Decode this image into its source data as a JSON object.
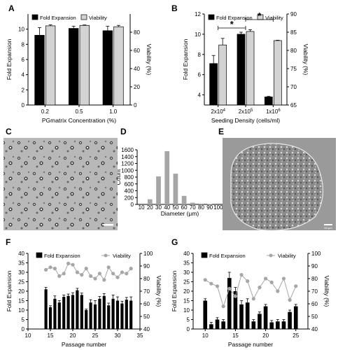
{
  "panels": {
    "A": "A",
    "B": "B",
    "C": "C",
    "D": "D",
    "E": "E",
    "F": "F",
    "G": "G"
  },
  "colors": {
    "fold": "#000000",
    "viability_bar": "#d3d3d3",
    "viability_line": "#a6a6a6",
    "hist": "#a6a6a6"
  },
  "micrograph_scalebars": {
    "E": "60 μm"
  },
  "chart_data": [
    {
      "id": "A",
      "type": "bar",
      "categories": [
        "0.2",
        "0.5",
        "1.0"
      ],
      "xlabel": "PGmatrix Concentration (%)",
      "ylabel": "Fold Expansion",
      "y2label": "Viability (%)",
      "ylim": [
        0,
        12
      ],
      "yticks": [
        0,
        2,
        4,
        6,
        8,
        10
      ],
      "y2lim": [
        0,
        100
      ],
      "y2ticks": [
        0,
        20,
        40,
        60,
        80
      ],
      "legend_position": "top-left",
      "series": [
        {
          "name": "Fold Expansion",
          "axis": "left",
          "values": [
            9.2,
            10.1,
            9.8
          ],
          "errors": [
            1.0,
            0.3,
            0.6
          ]
        },
        {
          "name": "Viability",
          "axis": "right",
          "values": [
            87,
            87.5,
            86
          ],
          "errors": [
            1.0,
            0.5,
            1.5
          ]
        }
      ]
    },
    {
      "id": "B",
      "type": "bar",
      "categories": [
        "2x10^4",
        "2x10^5",
        "1x10^6"
      ],
      "category_labels": [
        {
          "base": "2x10",
          "exp": "4"
        },
        {
          "base": "2x10",
          "exp": "5"
        },
        {
          "base": "1x10",
          "exp": "6"
        }
      ],
      "xlabel": "Seeding Density (cells/ml)",
      "ylabel": "Fold Expansion",
      "y2label": "Viability (%)",
      "ylim": [
        3,
        12
      ],
      "yticks": [
        4,
        6,
        8,
        10,
        12
      ],
      "y2lim": [
        65,
        90
      ],
      "y2ticks": [
        65,
        70,
        75,
        80,
        85,
        90
      ],
      "legend_position": "top-left",
      "significance": [
        {
          "from": 1,
          "to": 2,
          "label": "*"
        },
        {
          "from": 0,
          "to": 1,
          "label": "*"
        }
      ],
      "series": [
        {
          "name": "Fold Expansion",
          "axis": "left",
          "values": [
            7.1,
            10.0,
            3.8
          ],
          "errors": [
            0.8,
            0.2,
            0.05
          ]
        },
        {
          "name": "Viability",
          "axis": "right",
          "values": [
            81.5,
            85.2,
            82.7
          ],
          "errors": [
            1.8,
            0.5,
            0.1
          ]
        }
      ]
    },
    {
      "id": "D",
      "type": "bar",
      "categories": [
        "10",
        "20",
        "30",
        "40",
        "50",
        "60",
        "70",
        "80",
        "90",
        "100"
      ],
      "xlabel": "Diameter (μm)",
      "ylabel": "Count",
      "ylim": [
        0,
        1600
      ],
      "yticks": [
        0,
        200,
        400,
        600,
        800,
        1000,
        1200,
        1400,
        1600
      ],
      "values": [
        0,
        150,
        820,
        1560,
        900,
        250,
        50,
        20,
        10,
        0
      ]
    },
    {
      "id": "F",
      "type": "bar+line",
      "xlabel": "Passage number",
      "ylabel": "Fold Expansion",
      "y2label": "Viability (%)",
      "xlim": [
        10,
        35
      ],
      "xticks": [
        10,
        15,
        20,
        25,
        30,
        35
      ],
      "ylim": [
        0,
        40
      ],
      "yticks": [
        0,
        5,
        10,
        15,
        20,
        25,
        30,
        35,
        40
      ],
      "y2lim": [
        40,
        100
      ],
      "y2ticks": [
        40,
        50,
        60,
        70,
        80,
        90,
        100
      ],
      "legend_position": "top",
      "x": [
        14,
        15,
        16,
        17,
        18,
        19,
        20,
        21,
        22,
        23,
        24,
        25,
        26,
        27,
        28,
        29,
        30,
        31,
        32,
        33
      ],
      "series": [
        {
          "name": "Fold Expansion",
          "type": "bar",
          "axis": "left",
          "values": [
            21,
            11.5,
            16,
            14,
            17,
            17.5,
            18,
            20.5,
            18,
            10,
            14,
            13,
            16,
            17.5,
            12.5,
            16,
            15,
            13.5,
            15.5,
            15
          ],
          "errors": [
            1,
            0.8,
            1.5,
            1,
            1,
            1,
            1.2,
            1,
            1,
            0.5,
            1.5,
            2,
            1.2,
            1.2,
            1.2,
            2,
            2,
            1.2,
            1.2,
            2
          ]
        },
        {
          "name": "Viability",
          "type": "line",
          "axis": "right",
          "values": [
            87,
            89,
            88,
            82,
            84,
            92,
            91,
            85,
            83,
            88,
            82,
            80,
            84,
            79,
            89,
            84,
            81,
            85,
            84,
            88
          ]
        }
      ]
    },
    {
      "id": "G",
      "type": "bar+line",
      "xlabel": "Passage number",
      "ylabel": "Fold Expansion",
      "y2label": "Viability (%)",
      "xlim": [
        8,
        27
      ],
      "xticks": [
        10,
        15,
        20,
        25
      ],
      "ylim": [
        0,
        40
      ],
      "yticks": [
        0,
        5,
        10,
        15,
        20,
        25,
        30,
        35,
        40
      ],
      "y2lim": [
        40,
        100
      ],
      "y2ticks": [
        40,
        50,
        60,
        70,
        80,
        90,
        100
      ],
      "legend_position": "top",
      "x": [
        10,
        11,
        12,
        13,
        14,
        15,
        16,
        17,
        18,
        19,
        20,
        21,
        22,
        23,
        24,
        25
      ],
      "series": [
        {
          "name": "Fold Expansion",
          "type": "bar",
          "axis": "left",
          "values": [
            15,
            2.5,
            5,
            4,
            27,
            20,
            13,
            14,
            4,
            8,
            12,
            3.5,
            4,
            4,
            9,
            12
          ],
          "errors": [
            1,
            1,
            1,
            1,
            3,
            2,
            2,
            2,
            1,
            1,
            1,
            1,
            1,
            1,
            1,
            1
          ]
        },
        {
          "name": "Viability",
          "type": "line",
          "axis": "right",
          "values": [
            79,
            76,
            74,
            58,
            72,
            66,
            83,
            78,
            64,
            73,
            80,
            77,
            70,
            80,
            63,
            74
          ]
        }
      ]
    }
  ]
}
